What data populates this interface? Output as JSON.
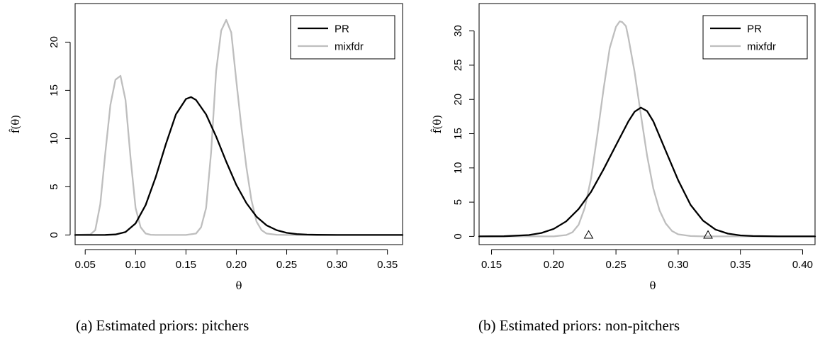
{
  "captions": {
    "a": "(a) Estimated priors: pitchers",
    "b": "(b) Estimated priors: non-pitchers"
  },
  "colors": {
    "PR": "#000000",
    "mixfdr": "#bebebe"
  },
  "chart_data": [
    {
      "type": "line",
      "caption": "(a) Estimated priors: pitchers",
      "xlabel": "θ",
      "ylabel": "f̂(θ)",
      "xlim": [
        0.04,
        0.365
      ],
      "ylim": [
        -1,
        24
      ],
      "xticks": [
        0.05,
        0.1,
        0.15,
        0.2,
        0.25,
        0.3,
        0.35
      ],
      "xticklabels": [
        "0.05",
        "0.10",
        "0.15",
        "0.20",
        "0.25",
        "0.30",
        "0.35"
      ],
      "yticks": [
        0,
        5,
        10,
        15,
        20
      ],
      "yticklabels": [
        "0",
        "5",
        "10",
        "15",
        "20"
      ],
      "grid": false,
      "legend": {
        "position": "top-right",
        "entries": [
          "PR",
          "mixfdr"
        ]
      },
      "series": [
        {
          "name": "PR",
          "x": [
            0.04,
            0.05,
            0.06,
            0.07,
            0.08,
            0.09,
            0.1,
            0.11,
            0.12,
            0.13,
            0.14,
            0.15,
            0.155,
            0.16,
            0.17,
            0.18,
            0.19,
            0.2,
            0.21,
            0.22,
            0.23,
            0.24,
            0.25,
            0.26,
            0.27,
            0.28,
            0.3,
            0.32,
            0.34,
            0.365
          ],
          "y": [
            0,
            0,
            0,
            0.01,
            0.05,
            0.3,
            1.2,
            3.1,
            6.0,
            9.4,
            12.5,
            14.1,
            14.3,
            14.0,
            12.5,
            10.2,
            7.6,
            5.2,
            3.3,
            1.9,
            1.0,
            0.5,
            0.22,
            0.09,
            0.04,
            0.015,
            0,
            0,
            0,
            0
          ]
        },
        {
          "name": "mixfdr",
          "x": [
            0.04,
            0.055,
            0.06,
            0.065,
            0.07,
            0.075,
            0.08,
            0.085,
            0.09,
            0.095,
            0.1,
            0.105,
            0.11,
            0.115,
            0.12,
            0.13,
            0.14,
            0.15,
            0.16,
            0.165,
            0.17,
            0.175,
            0.18,
            0.185,
            0.19,
            0.195,
            0.2,
            0.205,
            0.21,
            0.215,
            0.22,
            0.225,
            0.23,
            0.24,
            0.25,
            0.3,
            0.365
          ],
          "y": [
            0,
            0.05,
            0.5,
            3.2,
            8.5,
            13.5,
            16.1,
            16.5,
            14.0,
            8.0,
            2.8,
            0.8,
            0.15,
            0.02,
            0,
            0,
            0,
            0,
            0.15,
            0.8,
            2.8,
            8.6,
            17.0,
            21.2,
            22.3,
            21.0,
            16.0,
            11.2,
            7.0,
            3.6,
            1.4,
            0.5,
            0.15,
            0.02,
            0,
            0,
            0
          ]
        }
      ]
    },
    {
      "type": "line",
      "caption": "(b) Estimated priors: non-pitchers",
      "xlabel": "θ",
      "ylabel": "f̂(θ)",
      "xlim": [
        0.14,
        0.41
      ],
      "ylim": [
        -1.2,
        34
      ],
      "xticks": [
        0.15,
        0.2,
        0.25,
        0.3,
        0.35,
        0.4
      ],
      "xticklabels": [
        "0.15",
        "0.20",
        "0.25",
        "0.30",
        "0.35",
        "0.40"
      ],
      "yticks": [
        0,
        5,
        10,
        15,
        20,
        25,
        30
      ],
      "yticklabels": [
        "0",
        "5",
        "10",
        "15",
        "20",
        "25",
        "30"
      ],
      "grid": false,
      "legend": {
        "position": "top-right",
        "entries": [
          "PR",
          "mixfdr"
        ]
      },
      "markers": {
        "shape": "triangle",
        "x": [
          0.228,
          0.324
        ],
        "y": [
          0.2,
          0.2
        ]
      },
      "series": [
        {
          "name": "PR",
          "x": [
            0.14,
            0.16,
            0.18,
            0.19,
            0.2,
            0.21,
            0.22,
            0.23,
            0.24,
            0.25,
            0.26,
            0.265,
            0.27,
            0.275,
            0.28,
            0.29,
            0.3,
            0.31,
            0.32,
            0.33,
            0.34,
            0.35,
            0.36,
            0.38,
            0.41
          ],
          "y": [
            0,
            0.02,
            0.2,
            0.5,
            1.1,
            2.2,
            4.0,
            6.5,
            9.8,
            13.3,
            16.8,
            18.2,
            18.8,
            18.3,
            16.8,
            12.5,
            8.2,
            4.6,
            2.3,
            1.0,
            0.4,
            0.15,
            0.05,
            0,
            0
          ]
        },
        {
          "name": "mixfdr",
          "x": [
            0.14,
            0.2,
            0.21,
            0.215,
            0.22,
            0.225,
            0.23,
            0.235,
            0.24,
            0.245,
            0.25,
            0.253,
            0.255,
            0.258,
            0.26,
            0.265,
            0.27,
            0.275,
            0.28,
            0.285,
            0.29,
            0.295,
            0.3,
            0.31,
            0.32,
            0.34,
            0.41
          ],
          "y": [
            0,
            0,
            0.2,
            0.6,
            1.7,
            4.2,
            8.5,
            14.8,
            21.5,
            27.5,
            30.6,
            31.4,
            31.3,
            30.7,
            29.0,
            24.0,
            17.8,
            11.8,
            7.0,
            3.8,
            1.9,
            0.8,
            0.3,
            0.05,
            0,
            0,
            0
          ]
        }
      ]
    }
  ]
}
